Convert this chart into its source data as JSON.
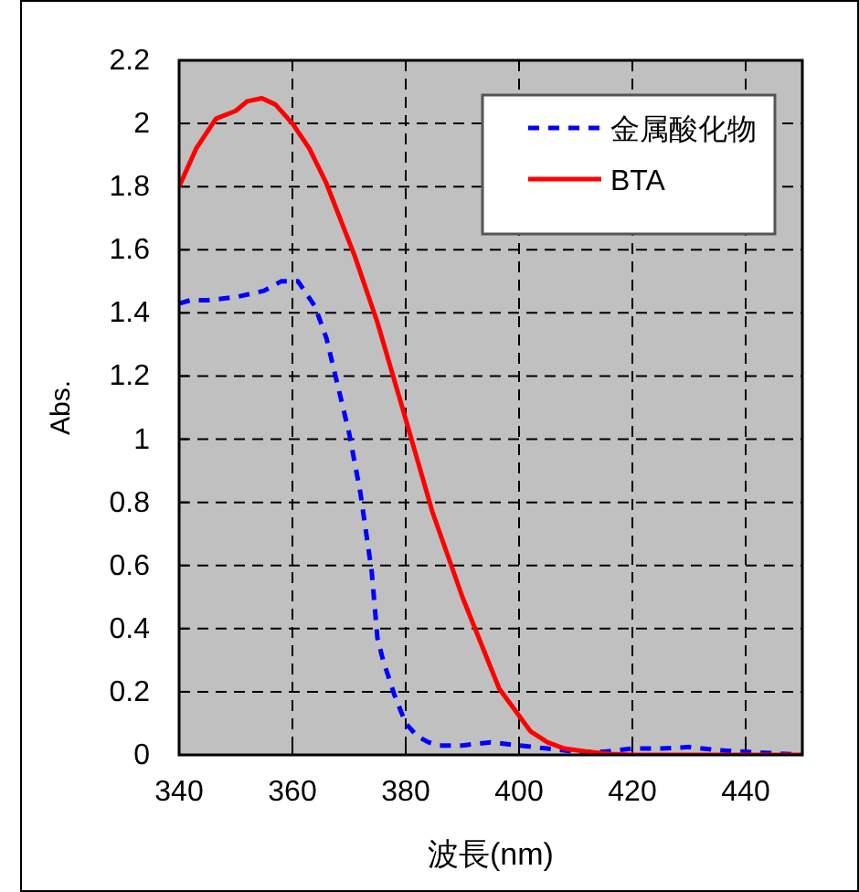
{
  "chart_data": {
    "type": "line",
    "xlabel": "波長(nm)",
    "ylabel": "Abs.",
    "xlim": [
      340,
      450
    ],
    "ylim": [
      0,
      2.2
    ],
    "xticks": [
      340,
      360,
      380,
      400,
      420,
      440
    ],
    "yticks": [
      0,
      0.2,
      0.4,
      0.6,
      0.8,
      1,
      1.2,
      1.4,
      1.6,
      1.8,
      2,
      2.2
    ],
    "grid": true,
    "legend": "top right",
    "series": [
      {
        "name": "金属酸化物",
        "color": "#0000ff",
        "line_style": "dashed",
        "x": [
          340,
          342,
          345,
          350,
          355,
          358,
          361,
          364,
          366,
          368,
          370,
          372,
          374,
          375,
          376,
          378,
          380,
          382,
          384,
          386,
          390,
          395,
          400,
          405,
          410,
          415,
          420,
          425,
          430,
          435,
          440,
          445,
          450
        ],
        "values": [
          1.43,
          1.44,
          1.44,
          1.45,
          1.47,
          1.5,
          1.5,
          1.42,
          1.32,
          1.17,
          1.02,
          0.83,
          0.58,
          0.37,
          0.3,
          0.19,
          0.1,
          0.06,
          0.04,
          0.03,
          0.03,
          0.04,
          0.03,
          0.02,
          0.01,
          0.01,
          0.02,
          0.02,
          0.025,
          0.015,
          0.01,
          0.005,
          0
        ]
      },
      {
        "name": "BTA",
        "color": "#ff0000",
        "line_style": "solid",
        "x": [
          340,
          343,
          346.5,
          350,
          352,
          354.6,
          357,
          360,
          363,
          366,
          371,
          375,
          379.4,
          384.7,
          390,
          396.5,
          402,
          405,
          408,
          412,
          416,
          420,
          430,
          440,
          450
        ],
        "values": [
          1.8,
          1.92,
          2.015,
          2.04,
          2.07,
          2.08,
          2.06,
          2.0,
          1.92,
          1.81,
          1.58,
          1.37,
          1.1,
          0.77,
          0.5,
          0.21,
          0.075,
          0.04,
          0.02,
          0.01,
          0.003,
          0,
          0,
          0,
          0
        ]
      }
    ]
  }
}
